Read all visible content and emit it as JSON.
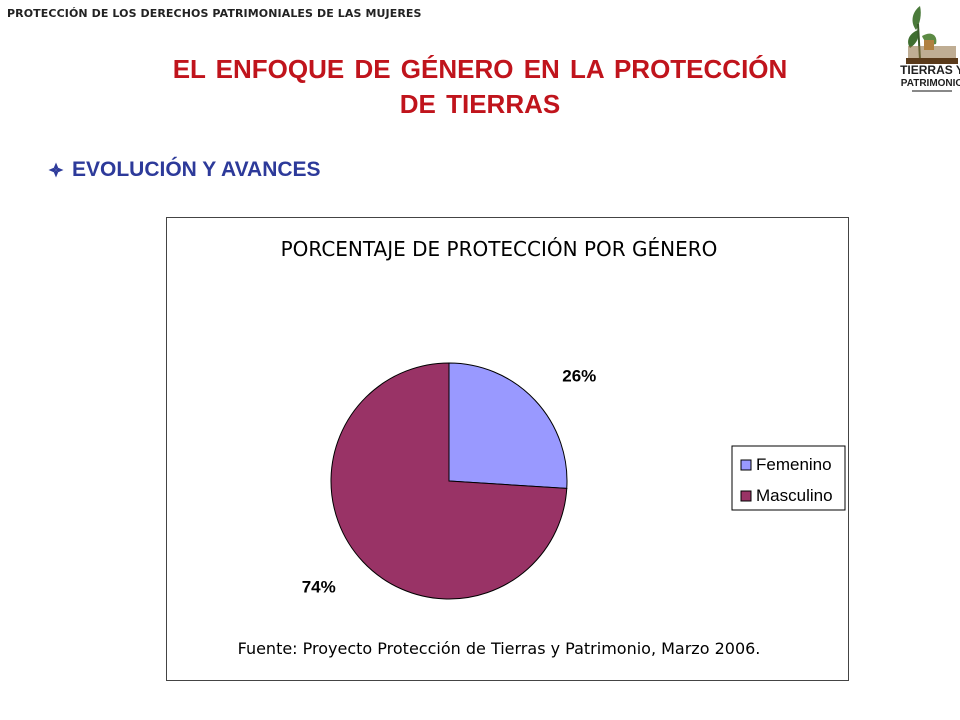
{
  "header": {
    "text": "PROTECCIÓN DE LOS DERECHOS PATRIMONIALES DE LAS MUJERES"
  },
  "logo": {
    "line1": "TIERRAS Y",
    "line2": "PATRIMONIO",
    "icon": "plant-logo-icon"
  },
  "slide": {
    "title_line1": "EL ENFOQUE  DE GÉNERO EN LA PROTECCIÓN",
    "title_line2": "DE TIERRAS",
    "subtitle": "EVOLUCIÓN Y AVANCES",
    "bullet_icon": "diamond-bullet-icon"
  },
  "colors": {
    "title": "#c0141c",
    "subtitle": "#2d3a9a",
    "femenino": "#9999ff",
    "masculino": "#993366"
  },
  "chart_data": {
    "type": "pie",
    "title": "PORCENTAJE DE PROTECCIÓN POR GÉNERO",
    "categories": [
      "Femenino",
      "Masculino"
    ],
    "values": [
      26,
      74
    ],
    "labels": [
      "26%",
      "74%"
    ],
    "legend_position": "right",
    "source": "Fuente: Proyecto Protección de Tierras y Patrimonio, Marzo 2006."
  }
}
